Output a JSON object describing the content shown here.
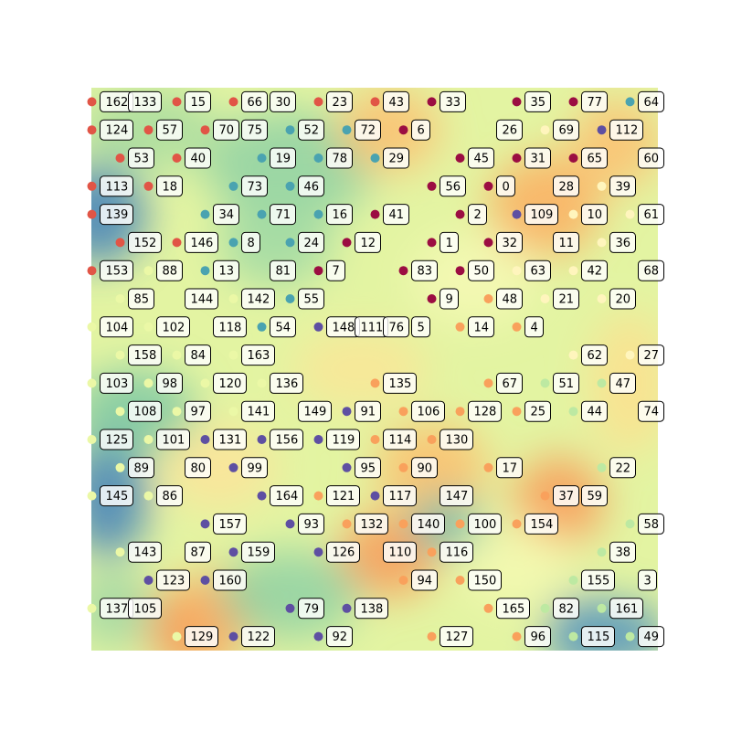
{
  "chart_data": {
    "type": "scatter",
    "title": "",
    "xlabel": "",
    "ylabel": "",
    "xlim": [
      0,
      20
    ],
    "ylim": [
      0,
      20
    ],
    "axes_visible": false,
    "background": "interpolated color field (Spectral colormap)",
    "colormap": "Spectral",
    "grid": false,
    "point_colors": {
      "red": "#e15546",
      "maroon": "#9b0d42",
      "teal": "#4aa3b0",
      "purple": "#5e4fa2",
      "orange": "#f9a15c",
      "lightyellow": "#fff5bd",
      "palegreen": "#bde9a2",
      "yellowgreen": "#ebf8a6"
    },
    "points": [
      {
        "label": "162",
        "x": 0.5,
        "y": 19.5,
        "color": "red"
      },
      {
        "label": "133",
        "x": 1.5,
        "y": 19.5,
        "color": null
      },
      {
        "label": "15",
        "x": 3.5,
        "y": 19.5,
        "color": "red"
      },
      {
        "label": "66",
        "x": 5.5,
        "y": 19.5,
        "color": "red"
      },
      {
        "label": "30",
        "x": 6.5,
        "y": 19.5,
        "color": null
      },
      {
        "label": "23",
        "x": 8.5,
        "y": 19.5,
        "color": "red"
      },
      {
        "label": "43",
        "x": 10.5,
        "y": 19.5,
        "color": "red"
      },
      {
        "label": "33",
        "x": 12.5,
        "y": 19.5,
        "color": "maroon"
      },
      {
        "label": "35",
        "x": 15.5,
        "y": 19.5,
        "color": "maroon"
      },
      {
        "label": "77",
        "x": 17.5,
        "y": 19.5,
        "color": "maroon"
      },
      {
        "label": "64",
        "x": 19.5,
        "y": 19.5,
        "color": "teal"
      },
      {
        "label": "124",
        "x": 0.5,
        "y": 18.5,
        "color": "red"
      },
      {
        "label": "57",
        "x": 2.5,
        "y": 18.5,
        "color": "red"
      },
      {
        "label": "70",
        "x": 4.5,
        "y": 18.5,
        "color": "red"
      },
      {
        "label": "75",
        "x": 5.5,
        "y": 18.5,
        "color": null
      },
      {
        "label": "52",
        "x": 7.5,
        "y": 18.5,
        "color": "teal"
      },
      {
        "label": "72",
        "x": 9.5,
        "y": 18.5,
        "color": "teal"
      },
      {
        "label": "6",
        "x": 11.5,
        "y": 18.5,
        "color": "maroon"
      },
      {
        "label": "26",
        "x": 14.5,
        "y": 18.5,
        "color": null
      },
      {
        "label": "69",
        "x": 16.5,
        "y": 18.5,
        "color": "lightyellow"
      },
      {
        "label": "112",
        "x": 18.5,
        "y": 18.5,
        "color": "purple"
      },
      {
        "label": "53",
        "x": 1.5,
        "y": 17.5,
        "color": "red"
      },
      {
        "label": "40",
        "x": 3.5,
        "y": 17.5,
        "color": "red"
      },
      {
        "label": "19",
        "x": 6.5,
        "y": 17.5,
        "color": "teal"
      },
      {
        "label": "78",
        "x": 8.5,
        "y": 17.5,
        "color": "teal"
      },
      {
        "label": "29",
        "x": 10.5,
        "y": 17.5,
        "color": "teal"
      },
      {
        "label": "45",
        "x": 13.5,
        "y": 17.5,
        "color": "maroon"
      },
      {
        "label": "31",
        "x": 15.5,
        "y": 17.5,
        "color": "maroon"
      },
      {
        "label": "65",
        "x": 17.5,
        "y": 17.5,
        "color": "maroon"
      },
      {
        "label": "60",
        "x": 19.5,
        "y": 17.5,
        "color": null
      },
      {
        "label": "113",
        "x": 0.5,
        "y": 16.5,
        "color": "red"
      },
      {
        "label": "18",
        "x": 2.5,
        "y": 16.5,
        "color": "red"
      },
      {
        "label": "73",
        "x": 5.5,
        "y": 16.5,
        "color": "teal"
      },
      {
        "label": "46",
        "x": 7.5,
        "y": 16.5,
        "color": "teal"
      },
      {
        "label": "56",
        "x": 12.5,
        "y": 16.5,
        "color": "maroon"
      },
      {
        "label": "0",
        "x": 14.5,
        "y": 16.5,
        "color": "maroon"
      },
      {
        "label": "28",
        "x": 16.5,
        "y": 16.5,
        "color": null
      },
      {
        "label": "39",
        "x": 18.5,
        "y": 16.5,
        "color": "lightyellow"
      },
      {
        "label": "139",
        "x": 0.5,
        "y": 15.5,
        "color": "red"
      },
      {
        "label": "34",
        "x": 4.5,
        "y": 15.5,
        "color": "teal"
      },
      {
        "label": "71",
        "x": 6.5,
        "y": 15.5,
        "color": "teal"
      },
      {
        "label": "16",
        "x": 8.5,
        "y": 15.5,
        "color": "teal"
      },
      {
        "label": "41",
        "x": 10.5,
        "y": 15.5,
        "color": "maroon"
      },
      {
        "label": "2",
        "x": 13.5,
        "y": 15.5,
        "color": "maroon"
      },
      {
        "label": "109",
        "x": 15.5,
        "y": 15.5,
        "color": "purple"
      },
      {
        "label": "10",
        "x": 17.5,
        "y": 15.5,
        "color": "lightyellow"
      },
      {
        "label": "61",
        "x": 19.5,
        "y": 15.5,
        "color": "lightyellow"
      },
      {
        "label": "152",
        "x": 1.5,
        "y": 14.5,
        "color": "red"
      },
      {
        "label": "146",
        "x": 3.5,
        "y": 14.5,
        "color": "red"
      },
      {
        "label": "8",
        "x": 5.5,
        "y": 14.5,
        "color": "teal"
      },
      {
        "label": "24",
        "x": 7.5,
        "y": 14.5,
        "color": "teal"
      },
      {
        "label": "12",
        "x": 9.5,
        "y": 14.5,
        "color": "maroon"
      },
      {
        "label": "1",
        "x": 12.5,
        "y": 14.5,
        "color": "maroon"
      },
      {
        "label": "32",
        "x": 14.5,
        "y": 14.5,
        "color": "maroon"
      },
      {
        "label": "11",
        "x": 16.5,
        "y": 14.5,
        "color": null
      },
      {
        "label": "36",
        "x": 18.5,
        "y": 14.5,
        "color": "lightyellow"
      },
      {
        "label": "153",
        "x": 0.5,
        "y": 13.5,
        "color": "red"
      },
      {
        "label": "88",
        "x": 2.5,
        "y": 13.5,
        "color": "yellowgreen"
      },
      {
        "label": "13",
        "x": 4.5,
        "y": 13.5,
        "color": "teal"
      },
      {
        "label": "81",
        "x": 6.5,
        "y": 13.5,
        "color": null
      },
      {
        "label": "7",
        "x": 8.5,
        "y": 13.5,
        "color": "maroon"
      },
      {
        "label": "83",
        "x": 11.5,
        "y": 13.5,
        "color": "maroon"
      },
      {
        "label": "50",
        "x": 13.5,
        "y": 13.5,
        "color": "maroon"
      },
      {
        "label": "63",
        "x": 15.5,
        "y": 13.5,
        "color": "lightyellow"
      },
      {
        "label": "42",
        "x": 17.5,
        "y": 13.5,
        "color": "lightyellow"
      },
      {
        "label": "68",
        "x": 19.5,
        "y": 13.5,
        "color": null
      },
      {
        "label": "85",
        "x": 1.5,
        "y": 12.5,
        "color": "yellowgreen"
      },
      {
        "label": "144",
        "x": 3.5,
        "y": 12.5,
        "color": null
      },
      {
        "label": "142",
        "x": 5.5,
        "y": 12.5,
        "color": "yellowgreen"
      },
      {
        "label": "55",
        "x": 7.5,
        "y": 12.5,
        "color": "teal"
      },
      {
        "label": "9",
        "x": 12.5,
        "y": 12.5,
        "color": "maroon"
      },
      {
        "label": "48",
        "x": 14.5,
        "y": 12.5,
        "color": "orange"
      },
      {
        "label": "21",
        "x": 16.5,
        "y": 12.5,
        "color": "lightyellow"
      },
      {
        "label": "20",
        "x": 18.5,
        "y": 12.5,
        "color": "lightyellow"
      },
      {
        "label": "104",
        "x": 0.5,
        "y": 11.5,
        "color": "yellowgreen"
      },
      {
        "label": "102",
        "x": 2.5,
        "y": 11.5,
        "color": "yellowgreen"
      },
      {
        "label": "118",
        "x": 4.5,
        "y": 11.5,
        "color": null
      },
      {
        "label": "54",
        "x": 6.5,
        "y": 11.5,
        "color": "teal"
      },
      {
        "label": "148",
        "x": 8.5,
        "y": 11.5,
        "color": "purple"
      },
      {
        "label": "111",
        "x": 9.5,
        "y": 11.5,
        "color": null
      },
      {
        "label": "76",
        "x": 10.5,
        "y": 11.5,
        "color": null
      },
      {
        "label": "5",
        "x": 11.5,
        "y": 11.5,
        "color": null
      },
      {
        "label": "14",
        "x": 13.5,
        "y": 11.5,
        "color": "orange"
      },
      {
        "label": "4",
        "x": 15.5,
        "y": 11.5,
        "color": "orange"
      },
      {
        "label": "158",
        "x": 1.5,
        "y": 10.5,
        "color": "yellowgreen"
      },
      {
        "label": "84",
        "x": 3.5,
        "y": 10.5,
        "color": "yellowgreen"
      },
      {
        "label": "163",
        "x": 5.5,
        "y": 10.5,
        "color": "yellowgreen"
      },
      {
        "label": "62",
        "x": 17.5,
        "y": 10.5,
        "color": "lightyellow"
      },
      {
        "label": "27",
        "x": 19.5,
        "y": 10.5,
        "color": "lightyellow"
      },
      {
        "label": "103",
        "x": 0.5,
        "y": 9.5,
        "color": "yellowgreen"
      },
      {
        "label": "98",
        "x": 2.5,
        "y": 9.5,
        "color": "yellowgreen"
      },
      {
        "label": "120",
        "x": 4.5,
        "y": 9.5,
        "color": "yellowgreen"
      },
      {
        "label": "136",
        "x": 6.5,
        "y": 9.5,
        "color": "yellowgreen"
      },
      {
        "label": "135",
        "x": 10.5,
        "y": 9.5,
        "color": "orange"
      },
      {
        "label": "67",
        "x": 14.5,
        "y": 9.5,
        "color": "orange"
      },
      {
        "label": "51",
        "x": 16.5,
        "y": 9.5,
        "color": "palegreen"
      },
      {
        "label": "47",
        "x": 18.5,
        "y": 9.5,
        "color": "palegreen"
      },
      {
        "label": "108",
        "x": 1.5,
        "y": 8.5,
        "color": "yellowgreen"
      },
      {
        "label": "97",
        "x": 3.5,
        "y": 8.5,
        "color": "yellowgreen"
      },
      {
        "label": "141",
        "x": 5.5,
        "y": 8.5,
        "color": "yellowgreen"
      },
      {
        "label": "149",
        "x": 7.5,
        "y": 8.5,
        "color": null
      },
      {
        "label": "91",
        "x": 9.5,
        "y": 8.5,
        "color": "purple"
      },
      {
        "label": "106",
        "x": 11.5,
        "y": 8.5,
        "color": "orange"
      },
      {
        "label": "128",
        "x": 13.5,
        "y": 8.5,
        "color": "orange"
      },
      {
        "label": "25",
        "x": 15.5,
        "y": 8.5,
        "color": "orange"
      },
      {
        "label": "44",
        "x": 17.5,
        "y": 8.5,
        "color": "palegreen"
      },
      {
        "label": "74",
        "x": 19.5,
        "y": 8.5,
        "color": null
      },
      {
        "label": "125",
        "x": 0.5,
        "y": 7.5,
        "color": "yellowgreen"
      },
      {
        "label": "101",
        "x": 2.5,
        "y": 7.5,
        "color": "yellowgreen"
      },
      {
        "label": "131",
        "x": 4.5,
        "y": 7.5,
        "color": "purple"
      },
      {
        "label": "156",
        "x": 6.5,
        "y": 7.5,
        "color": "purple"
      },
      {
        "label": "119",
        "x": 8.5,
        "y": 7.5,
        "color": "purple"
      },
      {
        "label": "114",
        "x": 10.5,
        "y": 7.5,
        "color": "orange"
      },
      {
        "label": "130",
        "x": 12.5,
        "y": 7.5,
        "color": "orange"
      },
      {
        "label": "89",
        "x": 1.5,
        "y": 6.5,
        "color": "yellowgreen"
      },
      {
        "label": "80",
        "x": 3.5,
        "y": 6.5,
        "color": null
      },
      {
        "label": "99",
        "x": 5.5,
        "y": 6.5,
        "color": "purple"
      },
      {
        "label": "95",
        "x": 9.5,
        "y": 6.5,
        "color": "purple"
      },
      {
        "label": "90",
        "x": 11.5,
        "y": 6.5,
        "color": "orange"
      },
      {
        "label": "17",
        "x": 14.5,
        "y": 6.5,
        "color": "orange"
      },
      {
        "label": "22",
        "x": 18.5,
        "y": 6.5,
        "color": "palegreen"
      },
      {
        "label": "145",
        "x": 0.5,
        "y": 5.5,
        "color": "yellowgreen"
      },
      {
        "label": "86",
        "x": 2.5,
        "y": 5.5,
        "color": "yellowgreen"
      },
      {
        "label": "164",
        "x": 6.5,
        "y": 5.5,
        "color": "purple"
      },
      {
        "label": "121",
        "x": 8.5,
        "y": 5.5,
        "color": "orange"
      },
      {
        "label": "117",
        "x": 10.5,
        "y": 5.5,
        "color": "purple"
      },
      {
        "label": "147",
        "x": 12.5,
        "y": 5.5,
        "color": null
      },
      {
        "label": "37",
        "x": 16.5,
        "y": 5.5,
        "color": "orange"
      },
      {
        "label": "59",
        "x": 17.5,
        "y": 5.5,
        "color": null
      },
      {
        "label": "157",
        "x": 4.5,
        "y": 4.5,
        "color": "purple"
      },
      {
        "label": "93",
        "x": 7.5,
        "y": 4.5,
        "color": "purple"
      },
      {
        "label": "132",
        "x": 9.5,
        "y": 4.5,
        "color": "orange"
      },
      {
        "label": "140",
        "x": 11.5,
        "y": 4.5,
        "color": "orange"
      },
      {
        "label": "100",
        "x": 13.5,
        "y": 4.5,
        "color": "orange"
      },
      {
        "label": "154",
        "x": 15.5,
        "y": 4.5,
        "color": "orange"
      },
      {
        "label": "58",
        "x": 19.5,
        "y": 4.5,
        "color": "palegreen"
      },
      {
        "label": "143",
        "x": 1.5,
        "y": 3.5,
        "color": "yellowgreen"
      },
      {
        "label": "87",
        "x": 3.5,
        "y": 3.5,
        "color": null
      },
      {
        "label": "159",
        "x": 5.5,
        "y": 3.5,
        "color": "purple"
      },
      {
        "label": "126",
        "x": 8.5,
        "y": 3.5,
        "color": "purple"
      },
      {
        "label": "110",
        "x": 10.5,
        "y": 3.5,
        "color": null
      },
      {
        "label": "116",
        "x": 12.5,
        "y": 3.5,
        "color": "orange"
      },
      {
        "label": "38",
        "x": 18.5,
        "y": 3.5,
        "color": "palegreen"
      },
      {
        "label": "123",
        "x": 2.5,
        "y": 2.5,
        "color": "purple"
      },
      {
        "label": "160",
        "x": 4.5,
        "y": 2.5,
        "color": "purple"
      },
      {
        "label": "94",
        "x": 11.5,
        "y": 2.5,
        "color": "orange"
      },
      {
        "label": "150",
        "x": 13.5,
        "y": 2.5,
        "color": "orange"
      },
      {
        "label": "155",
        "x": 17.5,
        "y": 2.5,
        "color": "palegreen"
      },
      {
        "label": "3",
        "x": 19.5,
        "y": 2.5,
        "color": null
      },
      {
        "label": "137",
        "x": 0.5,
        "y": 1.5,
        "color": "yellowgreen"
      },
      {
        "label": "105",
        "x": 1.5,
        "y": 1.5,
        "color": null
      },
      {
        "label": "79",
        "x": 7.5,
        "y": 1.5,
        "color": "purple"
      },
      {
        "label": "138",
        "x": 9.5,
        "y": 1.5,
        "color": "purple"
      },
      {
        "label": "165",
        "x": 14.5,
        "y": 1.5,
        "color": "orange"
      },
      {
        "label": "82",
        "x": 16.5,
        "y": 1.5,
        "color": "palegreen"
      },
      {
        "label": "161",
        "x": 18.5,
        "y": 1.5,
        "color": "palegreen"
      },
      {
        "label": "129",
        "x": 3.5,
        "y": 0.5,
        "color": "yellowgreen"
      },
      {
        "label": "122",
        "x": 5.5,
        "y": 0.5,
        "color": "purple"
      },
      {
        "label": "92",
        "x": 8.5,
        "y": 0.5,
        "color": "purple"
      },
      {
        "label": "127",
        "x": 12.5,
        "y": 0.5,
        "color": "orange"
      },
      {
        "label": "96",
        "x": 15.5,
        "y": 0.5,
        "color": "orange"
      },
      {
        "label": "115",
        "x": 17.5,
        "y": 0.5,
        "color": "palegreen"
      },
      {
        "label": "49",
        "x": 19.5,
        "y": 0.5,
        "color": "palegreen"
      }
    ]
  }
}
